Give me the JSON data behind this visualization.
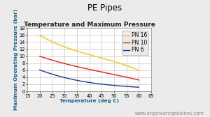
{
  "title": "PE Pipes",
  "subtitle": "Temperature and Maximum Pressure",
  "xlabel": "Temperature (deg C)",
  "ylabel": "Maximum Operating Pressure (bar)",
  "watermark": "www.engineeringtoolbox.com",
  "xlim": [
    15,
    65
  ],
  "ylim": [
    0,
    18
  ],
  "xticks": [
    15,
    20,
    25,
    30,
    35,
    40,
    45,
    50,
    55,
    60,
    65
  ],
  "yticks": [
    0,
    2,
    4,
    6,
    8,
    10,
    12,
    14,
    16,
    18
  ],
  "background_color": "#ebebeb",
  "plot_bg_color": "#ffffff",
  "series": [
    {
      "label": "PN 16",
      "color": "#f5c518",
      "x": [
        20,
        25,
        30,
        35,
        40,
        45,
        50,
        55,
        60
      ],
      "y": [
        16.0,
        14.2,
        12.5,
        11.5,
        10.5,
        9.5,
        8.5,
        7.2,
        6.0
      ]
    },
    {
      "label": "PN 10",
      "color": "#dd2211",
      "x": [
        20,
        25,
        30,
        35,
        40,
        45,
        50,
        55,
        60
      ],
      "y": [
        10.0,
        8.8,
        8.0,
        7.0,
        6.2,
        5.5,
        4.8,
        4.0,
        3.2
      ]
    },
    {
      "label": "PN 6",
      "color": "#1a3a8c",
      "x": [
        20,
        25,
        30,
        35,
        40,
        45,
        50,
        55,
        60
      ],
      "y": [
        6.0,
        5.0,
        4.0,
        3.0,
        2.4,
        2.0,
        1.8,
        1.4,
        1.1
      ]
    }
  ],
  "title_fontsize": 8.5,
  "subtitle_fontsize": 6.5,
  "axis_label_fontsize": 5.2,
  "tick_fontsize": 4.8,
  "legend_fontsize": 5.5,
  "watermark_fontsize": 4.8
}
